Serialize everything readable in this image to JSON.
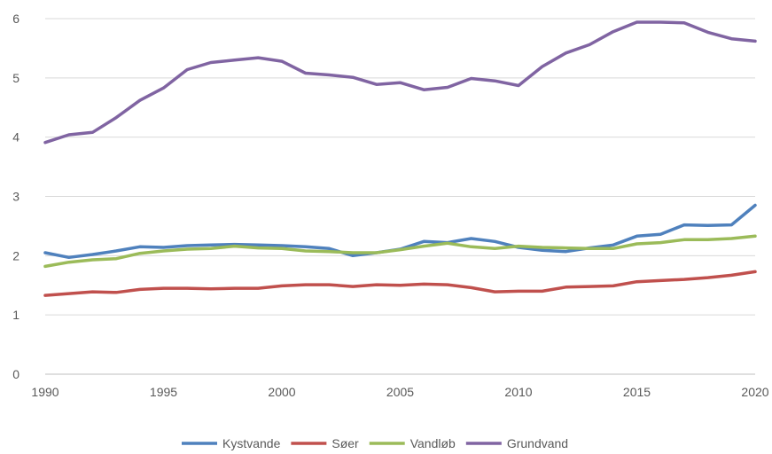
{
  "chart_data": {
    "type": "line",
    "title": "",
    "xlabel": "",
    "ylabel": "",
    "xlim": [
      1990,
      2020
    ],
    "ylim": [
      0,
      6
    ],
    "grid": true,
    "legend_position": "bottom",
    "x_ticks": [
      "1990",
      "1995",
      "2000",
      "2005",
      "2010",
      "2015",
      "2020"
    ],
    "y_ticks": [
      "0",
      "1",
      "2",
      "3",
      "4",
      "5",
      "6"
    ],
    "x": [
      1990,
      1991,
      1992,
      1993,
      1994,
      1995,
      1996,
      1997,
      1998,
      1999,
      2000,
      2001,
      2002,
      2003,
      2004,
      2005,
      2006,
      2007,
      2008,
      2009,
      2010,
      2011,
      2012,
      2013,
      2014,
      2015,
      2016,
      2017,
      2018,
      2019,
      2020
    ],
    "series": [
      {
        "name": "Kystvande",
        "color": "#4f81bd",
        "values": [
          2.05,
          1.97,
          2.02,
          2.08,
          2.15,
          2.14,
          2.17,
          2.18,
          2.19,
          2.18,
          2.17,
          2.15,
          2.12,
          2.0,
          2.05,
          2.11,
          2.24,
          2.22,
          2.29,
          2.24,
          2.14,
          2.09,
          2.07,
          2.13,
          2.18,
          2.33,
          2.36,
          2.52,
          2.51,
          2.52,
          2.85
        ]
      },
      {
        "name": "Søer",
        "color": "#c0504d",
        "values": [
          1.33,
          1.36,
          1.39,
          1.38,
          1.43,
          1.45,
          1.45,
          1.44,
          1.45,
          1.45,
          1.49,
          1.51,
          1.51,
          1.48,
          1.51,
          1.5,
          1.52,
          1.51,
          1.46,
          1.39,
          1.4,
          1.4,
          1.47,
          1.48,
          1.49,
          1.56,
          1.58,
          1.6,
          1.63,
          1.67,
          1.73
        ]
      },
      {
        "name": "Vandløb",
        "color": "#9bbb59",
        "values": [
          1.82,
          1.89,
          1.93,
          1.95,
          2.04,
          2.08,
          2.11,
          2.12,
          2.16,
          2.13,
          2.12,
          2.08,
          2.07,
          2.05,
          2.05,
          2.1,
          2.16,
          2.21,
          2.15,
          2.12,
          2.16,
          2.14,
          2.13,
          2.12,
          2.12,
          2.2,
          2.22,
          2.27,
          2.27,
          2.29,
          2.33
        ]
      },
      {
        "name": "Grundvand",
        "color": "#8064a2",
        "values": [
          3.91,
          4.04,
          4.08,
          4.33,
          4.62,
          4.83,
          5.14,
          5.26,
          5.3,
          5.34,
          5.28,
          5.08,
          5.05,
          5.01,
          4.89,
          4.92,
          4.8,
          4.84,
          4.99,
          4.95,
          4.87,
          5.19,
          5.42,
          5.56,
          5.78,
          5.94,
          5.94,
          5.93,
          5.77,
          5.66,
          5.62
        ]
      }
    ]
  }
}
